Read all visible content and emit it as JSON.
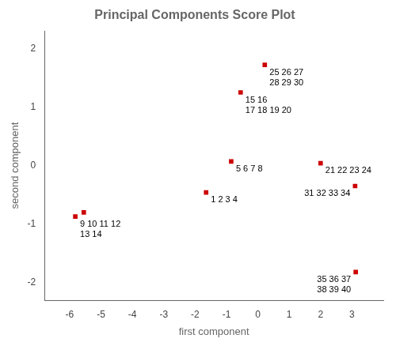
{
  "chart_data": {
    "type": "scatter",
    "title": "Principal Components Score Plot",
    "xlabel": "first component",
    "ylabel": "second component",
    "x": [
      -1.65,
      -0.85,
      -5.82,
      -5.55,
      -0.55,
      2.0,
      0.22,
      3.1,
      3.12
    ],
    "values": [
      -0.46,
      0.07,
      -0.87,
      -0.8,
      1.25,
      0.04,
      1.72,
      -0.35,
      -1.82
    ],
    "annotations": [
      "1 2 3 4",
      "5 6 7 8",
      "9 10 11 12\n13 14",
      null,
      "15 16\n17 18 19 20",
      "21 22 23 24",
      "25 26 27\n28 29 30",
      "31 32 33 34",
      "35 36 37\n38 39 40"
    ],
    "color": "#cc0000",
    "marker": "square",
    "xlim": [
      -6.8,
      4.0
    ],
    "xticks": [
      -6,
      -5,
      -4,
      -3,
      -2,
      -1,
      0,
      1,
      2,
      3
    ],
    "ylim": [
      -2.3,
      2.3
    ],
    "yticks": [
      -2,
      -1,
      0,
      1,
      2
    ],
    "grid": false
  }
}
